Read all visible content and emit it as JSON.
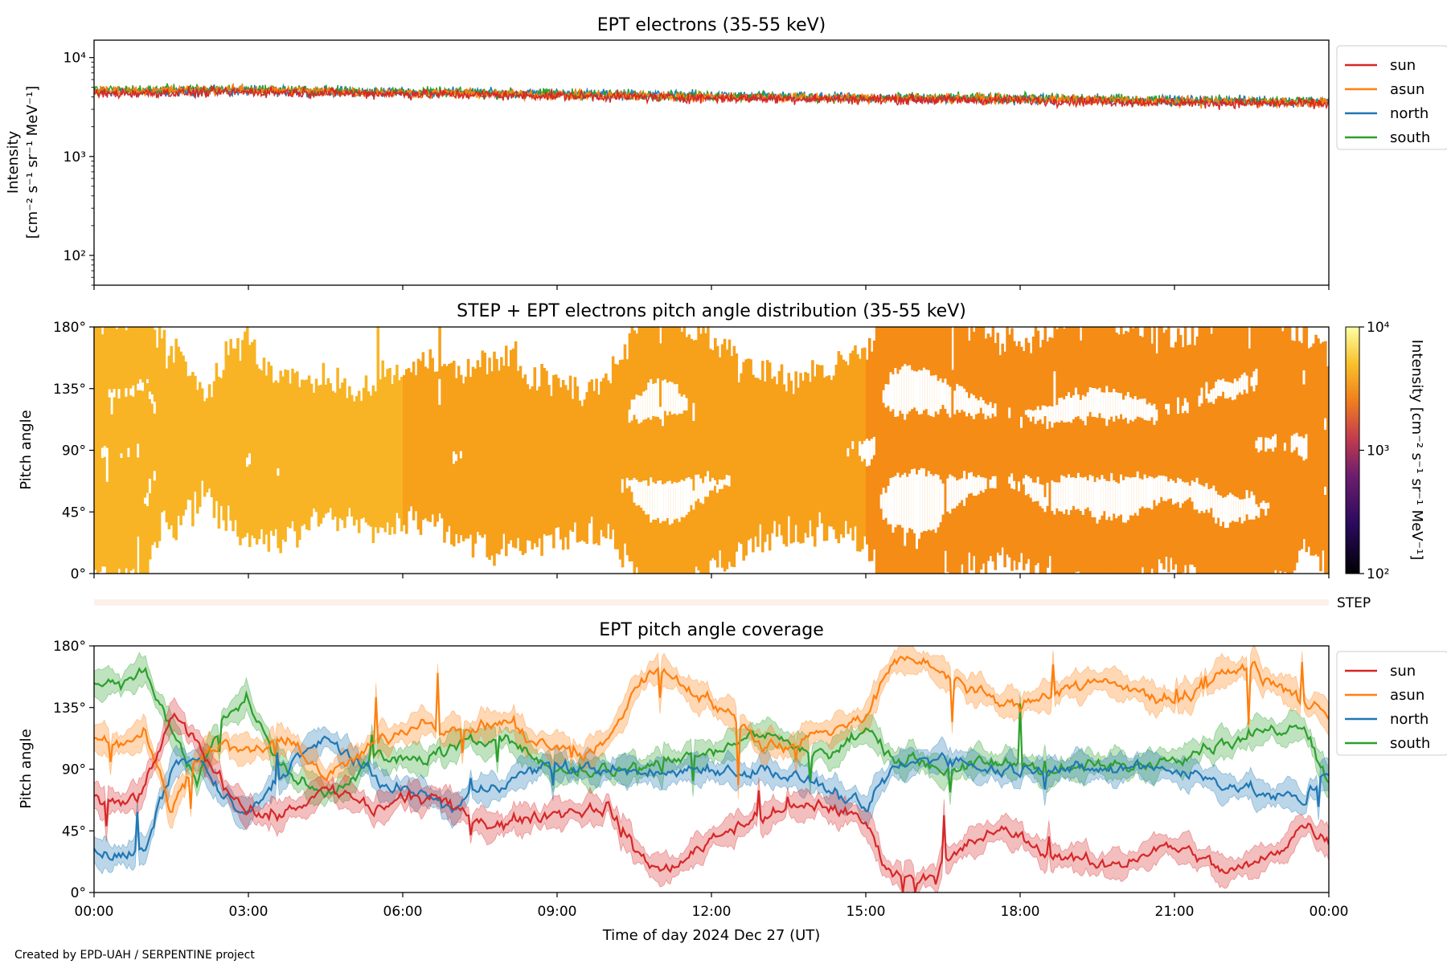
{
  "credit": "Created by EPD-UAH / SERPENTINE project",
  "xlabel": "Time of day 2024 Dec 27 (UT)",
  "x_ticks": [
    "00:00",
    "03:00",
    "06:00",
    "09:00",
    "12:00",
    "15:00",
    "18:00",
    "21:00",
    "00:00"
  ],
  "step_label": "STEP",
  "colors": {
    "sun": "#d62728",
    "asun": "#ff7f0e",
    "north": "#1f77b4",
    "south": "#2ca02c"
  },
  "chart_data": [
    {
      "id": "intensity",
      "type": "line",
      "title": "EPT electrons (35-55 keV)",
      "ylabel_line1": "Intensity",
      "ylabel_line2": "[cm⁻² s⁻¹ sr⁻¹ MeV⁻¹]",
      "yscale": "log",
      "ylim": [
        50,
        15000
      ],
      "y_ticks": [
        {
          "value": 100,
          "label": "10²"
        },
        {
          "value": 1000,
          "label": "10³"
        },
        {
          "value": 10000,
          "label": "10⁴"
        }
      ],
      "x_unit": "hours",
      "xlim": [
        0,
        24
      ],
      "legend_position": "outside-right",
      "series": [
        {
          "name": "sun",
          "color": "#d62728",
          "x": [
            0,
            3,
            6,
            9,
            12,
            15,
            18,
            21,
            24
          ],
          "y": [
            4300,
            4500,
            4300,
            4100,
            3900,
            3800,
            3700,
            3500,
            3400
          ]
        },
        {
          "name": "asun",
          "color": "#ff7f0e",
          "x": [
            0,
            3,
            6,
            9,
            12,
            15,
            18,
            21,
            24
          ],
          "y": [
            4600,
            4700,
            4400,
            4200,
            4000,
            3900,
            3800,
            3600,
            3500
          ]
        },
        {
          "name": "north",
          "color": "#1f77b4",
          "x": [
            0,
            3,
            6,
            9,
            12,
            15,
            18,
            21,
            24
          ],
          "y": [
            4500,
            4600,
            4500,
            4300,
            4100,
            3900,
            3800,
            3700,
            3600
          ]
        },
        {
          "name": "south",
          "color": "#2ca02c",
          "x": [
            0,
            3,
            6,
            9,
            12,
            15,
            18,
            21,
            24
          ],
          "y": [
            4700,
            4800,
            4500,
            4300,
            4100,
            3900,
            3900,
            3700,
            3600
          ]
        }
      ]
    },
    {
      "id": "pad",
      "type": "heatmap",
      "title": "STEP + EPT electrons pitch angle distribution (35-55 keV)",
      "ylabel": "Pitch angle",
      "ylim": [
        0,
        180
      ],
      "y_ticks": [
        "0°",
        "45°",
        "90°",
        "135°",
        "180°"
      ],
      "xlim": [
        0,
        24
      ],
      "colorbar": {
        "label": "Intensity [cm⁻² s⁻¹ sr⁻¹ MeV⁻¹]",
        "colormap": "inferno",
        "scale": "log",
        "range": [
          100,
          10000
        ],
        "ticks": [
          "10²",
          "10³",
          "10⁴"
        ]
      },
      "approx_intensity_range": [
        3000,
        5500
      ]
    },
    {
      "id": "coverage",
      "type": "line",
      "title": "EPT pitch angle coverage",
      "ylabel": "Pitch angle",
      "ylim": [
        0,
        180
      ],
      "y_ticks": [
        "0°",
        "45°",
        "90°",
        "135°",
        "180°"
      ],
      "xlim": [
        0,
        24
      ],
      "x_unit": "hours",
      "legend_position": "outside-right",
      "series": [
        {
          "name": "sun",
          "color": "#d62728",
          "x": [
            0,
            0.5,
            1,
            1.5,
            2,
            2.5,
            3,
            3.5,
            4,
            4.5,
            5,
            5.5,
            6,
            6.5,
            7,
            7.5,
            8,
            8.5,
            9,
            9.5,
            10,
            10.5,
            11,
            11.5,
            12,
            12.5,
            13,
            13.5,
            14,
            14.5,
            15,
            15.5,
            16,
            16.5,
            17,
            17.5,
            18,
            18.5,
            19,
            19.5,
            20,
            20.5,
            21,
            21.5,
            22,
            22.5,
            23,
            23.5,
            24
          ],
          "y": [
            70,
            62,
            75,
            130,
            110,
            80,
            60,
            55,
            65,
            75,
            70,
            60,
            68,
            70,
            60,
            55,
            50,
            55,
            58,
            60,
            62,
            30,
            15,
            25,
            40,
            50,
            55,
            60,
            65,
            60,
            50,
            15,
            10,
            20,
            35,
            45,
            40,
            30,
            25,
            20,
            22,
            30,
            35,
            25,
            15,
            20,
            30,
            50,
            40
          ]
        },
        {
          "name": "asun",
          "color": "#ff7f0e",
          "x": [
            0,
            0.5,
            1,
            1.5,
            2,
            2.5,
            3,
            3.5,
            4,
            4.5,
            5,
            5.5,
            6,
            6.5,
            7,
            7.5,
            8,
            8.5,
            9,
            9.5,
            10,
            10.5,
            11,
            11.5,
            12,
            12.5,
            13,
            13.5,
            14,
            14.5,
            15,
            15.5,
            16,
            16.5,
            17,
            17.5,
            18,
            18.5,
            19,
            19.5,
            20,
            20.5,
            21,
            21.5,
            22,
            22.5,
            23,
            23.5,
            24
          ],
          "y": [
            115,
            110,
            120,
            60,
            100,
            110,
            100,
            110,
            105,
            85,
            95,
            110,
            120,
            125,
            115,
            120,
            125,
            110,
            105,
            100,
            110,
            150,
            165,
            150,
            140,
            125,
            110,
            105,
            115,
            120,
            130,
            165,
            170,
            160,
            150,
            140,
            135,
            145,
            150,
            155,
            150,
            145,
            140,
            150,
            160,
            165,
            150,
            140,
            130
          ]
        },
        {
          "name": "north",
          "color": "#1f77b4",
          "x": [
            0,
            0.5,
            1,
            1.5,
            2,
            2.5,
            3,
            3.5,
            4,
            4.5,
            5,
            5.5,
            6,
            6.5,
            7,
            7.5,
            8,
            8.5,
            9,
            9.5,
            10,
            10.5,
            11,
            11.5,
            12,
            12.5,
            13,
            13.5,
            14,
            14.5,
            15,
            15.5,
            16,
            16.5,
            17,
            17.5,
            18,
            18.5,
            19,
            19.5,
            20,
            20.5,
            21,
            21.5,
            22,
            22.5,
            23,
            23.5,
            24
          ],
          "y": [
            30,
            25,
            30,
            90,
            100,
            70,
            55,
            80,
            100,
            110,
            100,
            80,
            75,
            70,
            60,
            75,
            80,
            90,
            92,
            90,
            90,
            88,
            86,
            90,
            92,
            88,
            90,
            85,
            80,
            70,
            60,
            90,
            95,
            100,
            95,
            90,
            90,
            92,
            90,
            88,
            90,
            92,
            90,
            85,
            80,
            75,
            70,
            65,
            90
          ]
        },
        {
          "name": "south",
          "color": "#2ca02c",
          "x": [
            0,
            0.5,
            1,
            1.5,
            2,
            2.5,
            3,
            3.5,
            4,
            4.5,
            5,
            5.5,
            6,
            6.5,
            7,
            7.5,
            8,
            8.5,
            9,
            9.5,
            10,
            10.5,
            11,
            11.5,
            12,
            12.5,
            13,
            13.5,
            14,
            14.5,
            15,
            15.5,
            16,
            16.5,
            17,
            17.5,
            18,
            18.5,
            19,
            19.5,
            20,
            20.5,
            21,
            21.5,
            22,
            22.5,
            23,
            23.5,
            24
          ],
          "y": [
            155,
            150,
            160,
            120,
            80,
            130,
            140,
            100,
            80,
            70,
            85,
            100,
            95,
            100,
            105,
            110,
            115,
            100,
            90,
            88,
            90,
            92,
            95,
            100,
            105,
            110,
            115,
            110,
            100,
            105,
            120,
            100,
            95,
            90,
            92,
            95,
            95,
            90,
            88,
            92,
            90,
            95,
            100,
            105,
            110,
            115,
            120,
            125,
            80
          ]
        }
      ]
    }
  ]
}
